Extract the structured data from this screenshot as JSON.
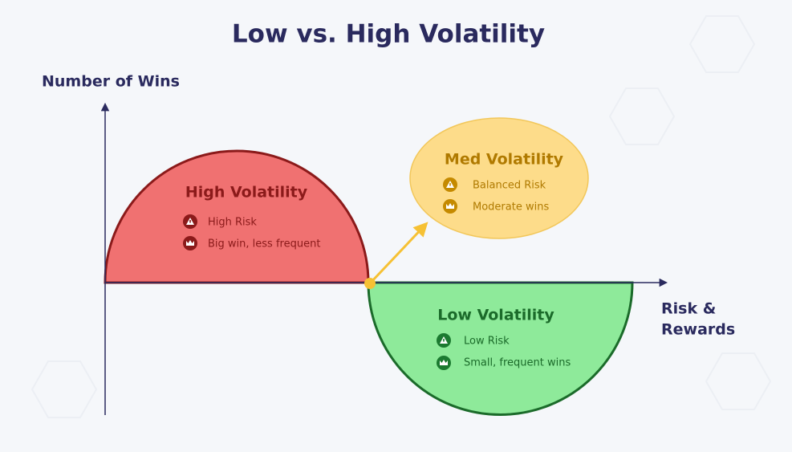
{
  "title": "Low vs. High Volatility",
  "y_axis_label": "Number of Wins",
  "x_axis_label": [
    "Risk &",
    "Rewards"
  ],
  "regions": [
    {
      "title": "High Volatility",
      "items": [
        "High Risk",
        "Big win, less frequent"
      ]
    },
    {
      "title": "Med Volatility",
      "items": [
        "Balanced Risk",
        "Moderate wins"
      ]
    },
    {
      "title": "Low Volatility",
      "items": [
        "Low Risk",
        "Small, frequent wins"
      ]
    }
  ]
}
